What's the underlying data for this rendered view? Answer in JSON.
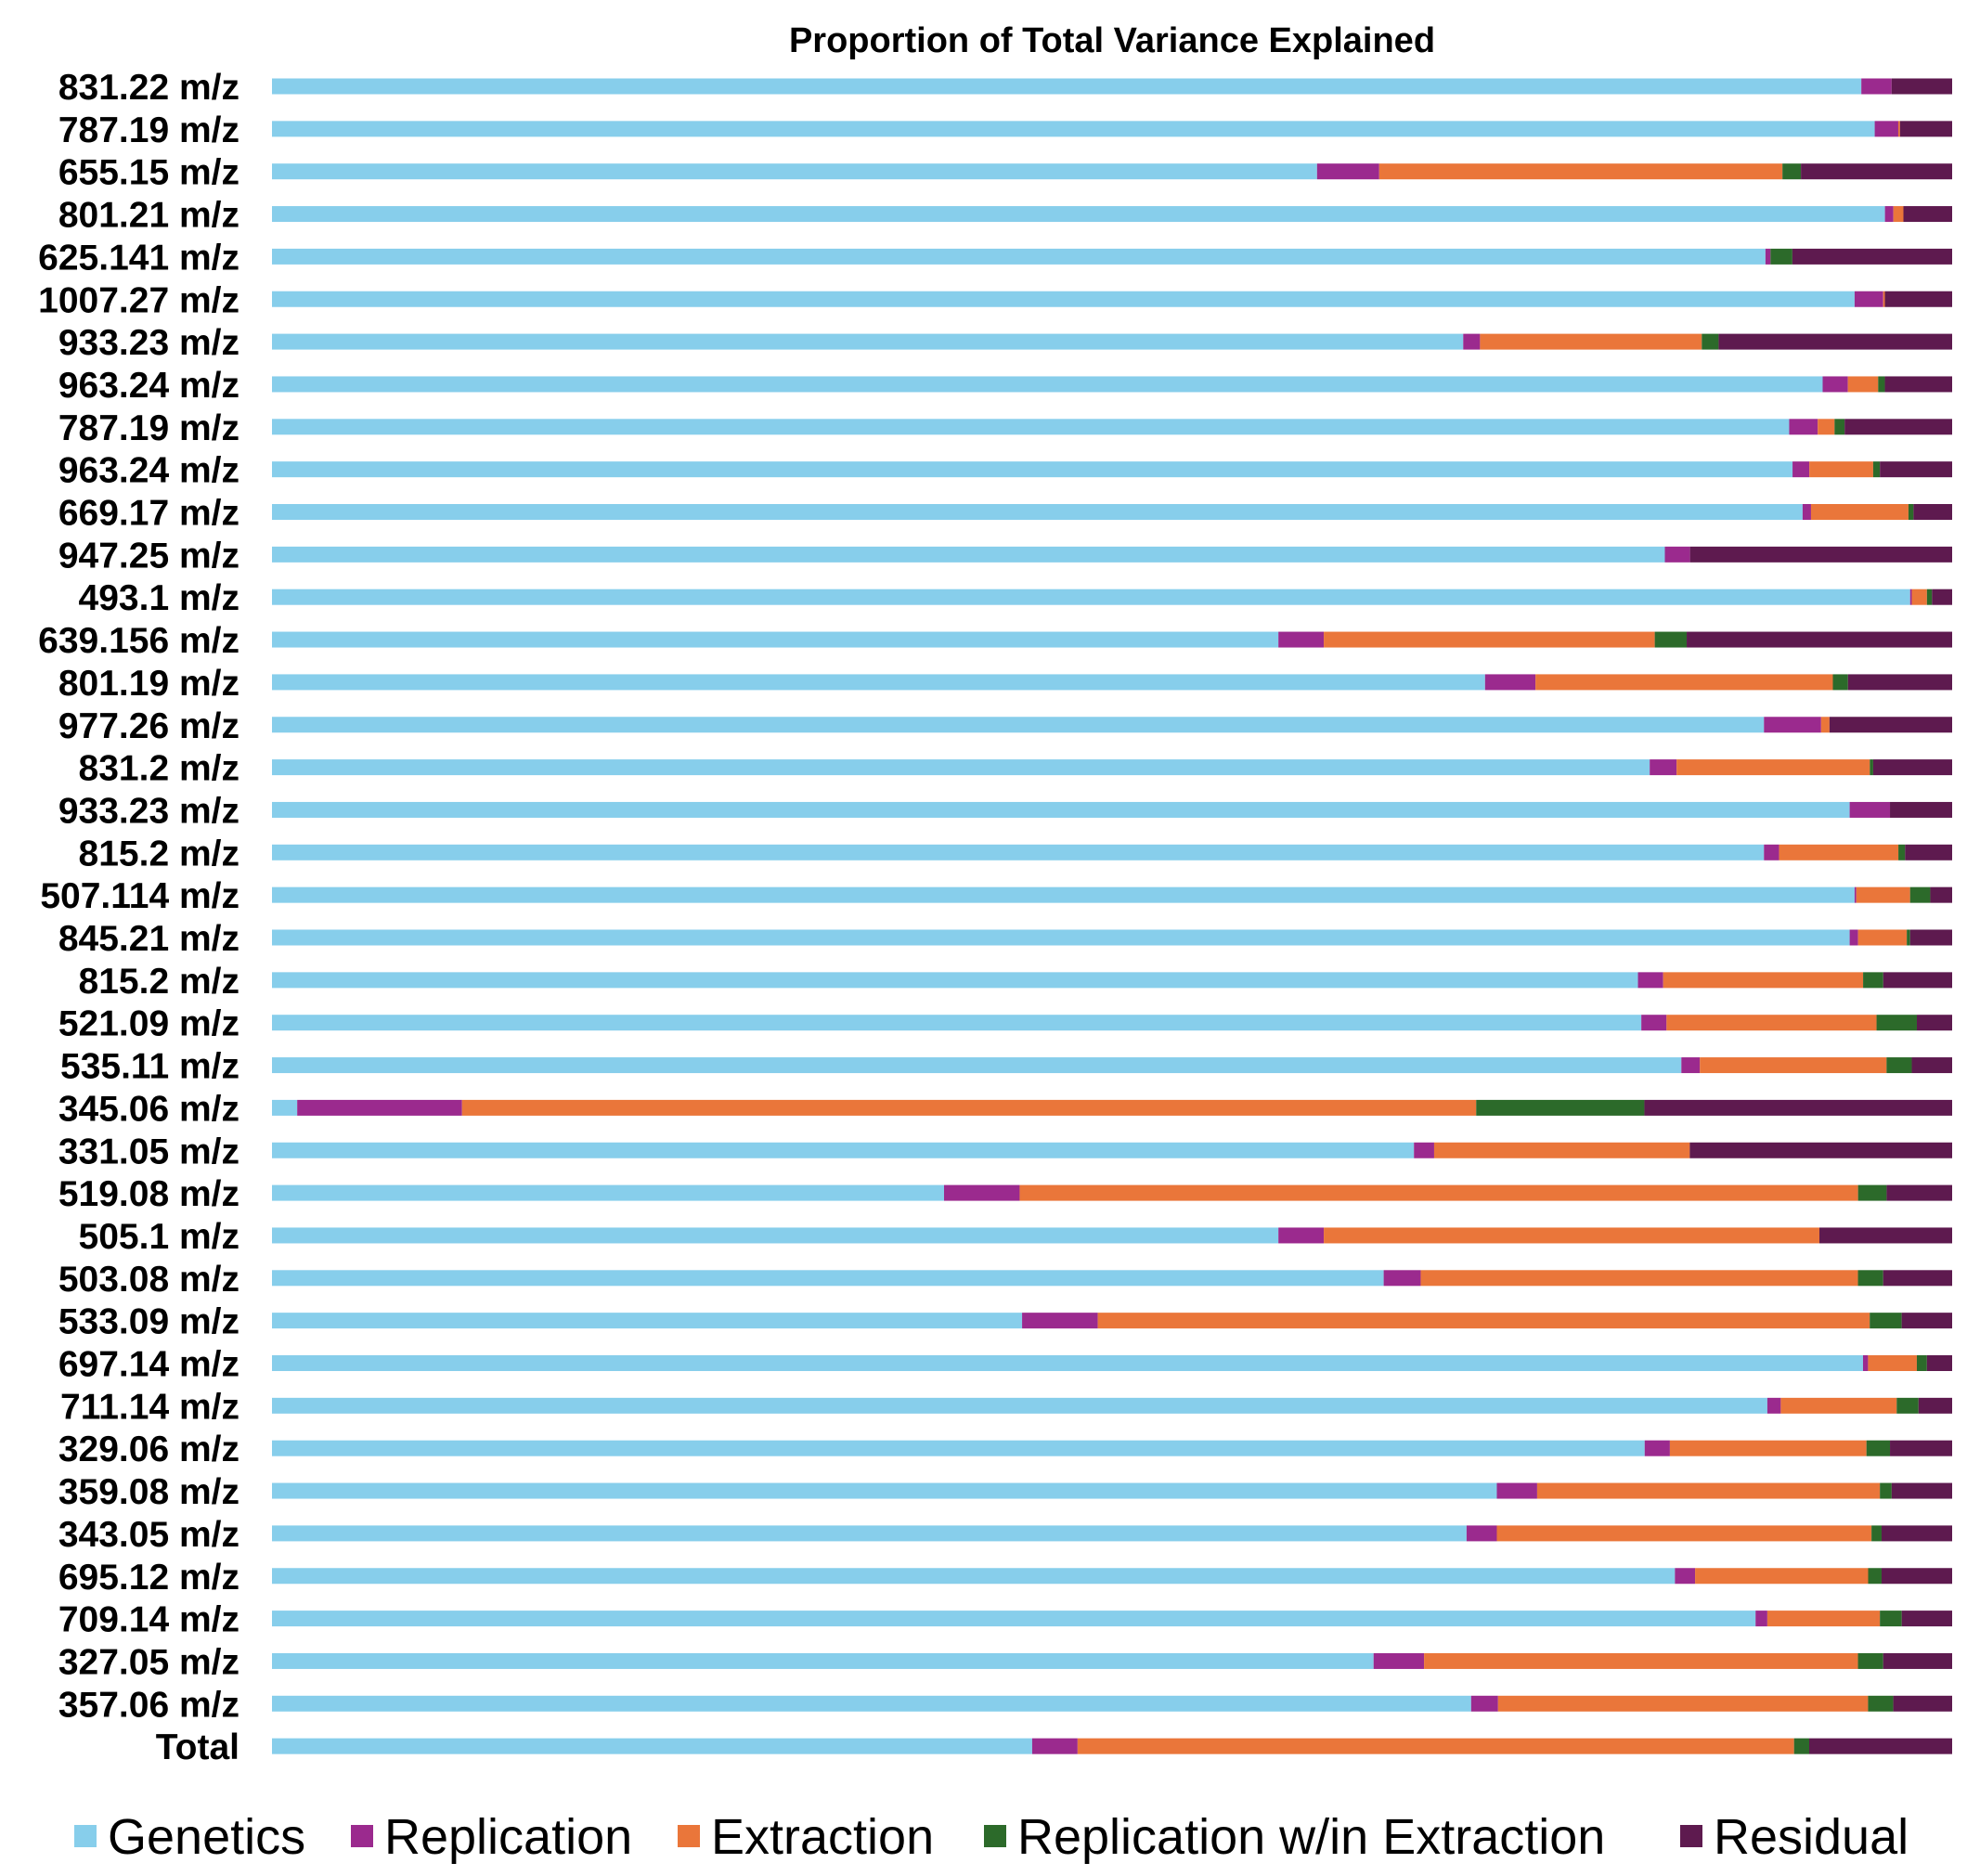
{
  "chart_data": {
    "type": "bar",
    "orientation": "horizontal",
    "stacked": true,
    "normalized": true,
    "title": "Proportion of Total Variance Explained",
    "xlabel": "",
    "ylabel": "",
    "xlim": [
      0,
      1
    ],
    "grid": false,
    "legend_position": "bottom",
    "colors": {
      "Genetics": "#87CEEB",
      "Replication": "#9B2A8E",
      "Extraction": "#EA763A",
      "Replication w/in Extraction": "#2C6A2A",
      "Residual": "#5E1A4F"
    },
    "categories": [
      "831.22 m/z",
      "787.19 m/z",
      "655.15 m/z",
      "801.21 m/z",
      "625.141 m/z",
      "1007.27 m/z",
      "933.23 m/z",
      "963.24 m/z",
      "787.19 m/z",
      "963.24 m/z",
      "669.17 m/z",
      "947.25 m/z",
      "493.1 m/z",
      "639.156 m/z",
      "801.19 m/z",
      "977.26 m/z",
      "831.2 m/z",
      "933.23 m/z",
      "815.2 m/z",
      "507.114 m/z",
      "845.21 m/z",
      "815.2 m/z",
      "521.09 m/z",
      "535.11 m/z",
      "345.06 m/z",
      "331.05 m/z",
      "519.08 m/z",
      "505.1 m/z",
      "503.08 m/z",
      "533.09 m/z",
      "697.14 m/z",
      "711.14 m/z",
      "329.06 m/z",
      "359.08 m/z",
      "343.05 m/z",
      "695.12 m/z",
      "709.14 m/z",
      "327.05 m/z",
      "357.06 m/z",
      "Total"
    ],
    "series": [
      {
        "name": "Genetics",
        "values": [
          0.945,
          0.952,
          0.622,
          0.96,
          0.888,
          0.941,
          0.709,
          0.922,
          0.903,
          0.905,
          0.911,
          0.829,
          0.975,
          0.599,
          0.722,
          0.888,
          0.82,
          0.939,
          0.888,
          0.941,
          0.939,
          0.813,
          0.815,
          0.838,
          0.015,
          0.679,
          0.4,
          0.599,
          0.661,
          0.446,
          0.946,
          0.89,
          0.817,
          0.729,
          0.711,
          0.835,
          0.883,
          0.655,
          0.713,
          0.452
        ]
      },
      {
        "name": "Replication",
        "values": [
          0.018,
          0.014,
          0.037,
          0.005,
          0.003,
          0.017,
          0.01,
          0.015,
          0.017,
          0.01,
          0.005,
          0.015,
          0.001,
          0.027,
          0.03,
          0.034,
          0.016,
          0.024,
          0.009,
          0.001,
          0.005,
          0.015,
          0.015,
          0.011,
          0.098,
          0.012,
          0.045,
          0.027,
          0.022,
          0.045,
          0.003,
          0.008,
          0.015,
          0.024,
          0.018,
          0.012,
          0.007,
          0.03,
          0.016,
          0.027
        ]
      },
      {
        "name": "Extraction",
        "values": [
          0.0,
          0.001,
          0.24,
          0.006,
          0.0,
          0.001,
          0.132,
          0.018,
          0.01,
          0.038,
          0.058,
          0.0,
          0.009,
          0.197,
          0.177,
          0.005,
          0.115,
          0.0,
          0.071,
          0.032,
          0.029,
          0.119,
          0.125,
          0.111,
          0.603,
          0.152,
          0.499,
          0.295,
          0.26,
          0.459,
          0.029,
          0.069,
          0.117,
          0.204,
          0.223,
          0.103,
          0.067,
          0.258,
          0.22,
          0.426
        ]
      },
      {
        "name": "Replication w/in Extraction",
        "values": [
          0.0,
          0.0,
          0.011,
          0.0,
          0.013,
          0.0,
          0.01,
          0.004,
          0.006,
          0.004,
          0.003,
          0.0,
          0.003,
          0.019,
          0.009,
          0.0,
          0.002,
          0.0,
          0.004,
          0.012,
          0.002,
          0.012,
          0.024,
          0.015,
          0.1,
          0.0,
          0.017,
          0.0,
          0.015,
          0.019,
          0.006,
          0.013,
          0.014,
          0.007,
          0.006,
          0.008,
          0.013,
          0.015,
          0.015,
          0.009
        ]
      },
      {
        "name": "Residual",
        "values": [
          0.036,
          0.031,
          0.09,
          0.029,
          0.095,
          0.04,
          0.139,
          0.04,
          0.064,
          0.043,
          0.023,
          0.156,
          0.012,
          0.158,
          0.062,
          0.073,
          0.047,
          0.037,
          0.028,
          0.013,
          0.025,
          0.041,
          0.021,
          0.024,
          0.183,
          0.156,
          0.039,
          0.079,
          0.041,
          0.03,
          0.015,
          0.02,
          0.037,
          0.036,
          0.042,
          0.042,
          0.03,
          0.041,
          0.035,
          0.085
        ]
      }
    ]
  }
}
